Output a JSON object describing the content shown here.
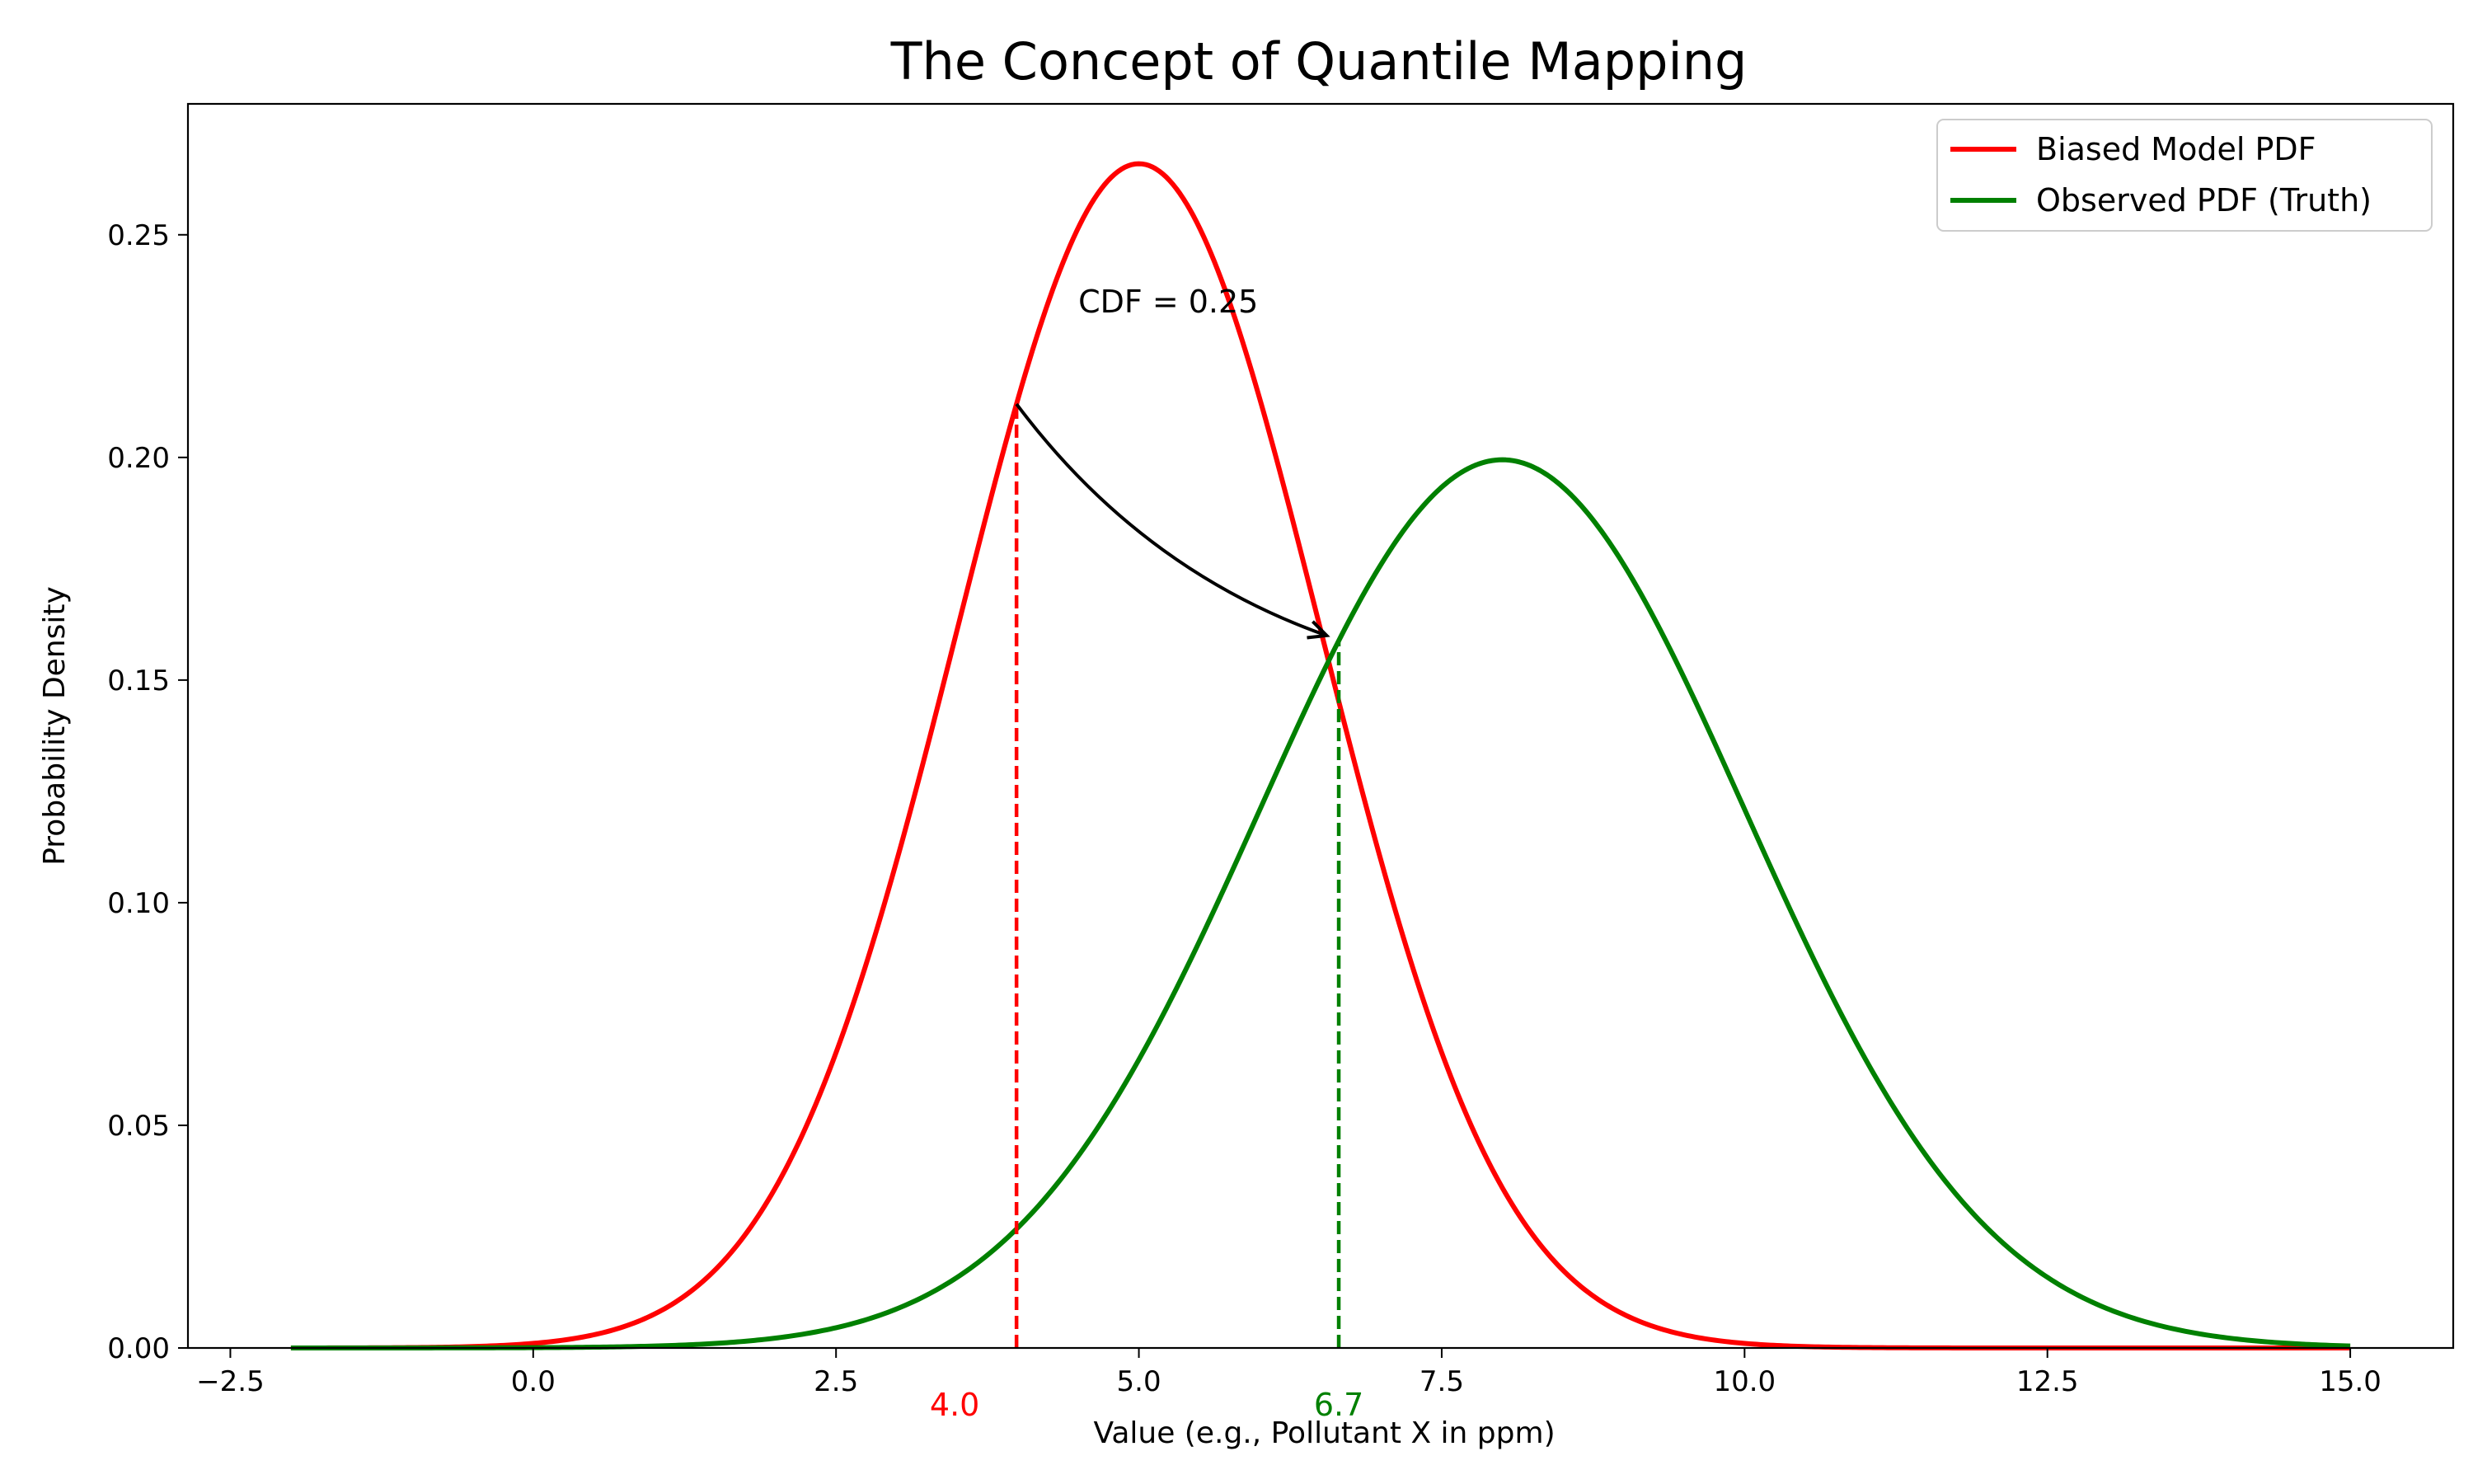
{
  "chart_data": {
    "type": "line",
    "title": "The Concept of Quantile Mapping",
    "xlabel": "Value (e.g., Pollutant X in ppm)",
    "ylabel": "Probability Density",
    "xlim": [
      -2.85,
      15.85
    ],
    "ylim": [
      0,
      0.2794
    ],
    "x_range": [
      -2,
      15
    ],
    "xticks": [
      -2.5,
      0.0,
      2.5,
      5.0,
      7.5,
      10.0,
      12.5,
      15.0
    ],
    "xtick_labels": [
      "−2.5",
      "0.0",
      "2.5",
      "5.0",
      "7.5",
      "10.0",
      "12.5",
      "15.0"
    ],
    "yticks": [
      0.0,
      0.05,
      0.1,
      0.15,
      0.2,
      0.25
    ],
    "ytick_labels": [
      "0.00",
      "0.05",
      "0.10",
      "0.15",
      "0.20",
      "0.25"
    ],
    "grid": false,
    "legend_position": "top-right",
    "series": [
      {
        "name": "Biased Model PDF",
        "color": "#ff0000",
        "distribution": "normal",
        "mean": 5,
        "std": 1.5
      },
      {
        "name": "Observed PDF (Truth)",
        "color": "#008000",
        "distribution": "normal",
        "mean": 8,
        "std": 2.0
      }
    ],
    "annotations": {
      "cdf_label": "CDF = 0.25",
      "cdf_label_at": [
        4.5,
        0.235
      ],
      "model_quantile": {
        "x": 3.99,
        "label": "4.0",
        "color": "#ff0000"
      },
      "observed_quantile": {
        "x": 6.65,
        "label": "6.7",
        "color": "#008000"
      },
      "arrow_from": [
        3.99,
        0.212
      ],
      "arrow_to": [
        6.55,
        0.16
      ]
    }
  }
}
